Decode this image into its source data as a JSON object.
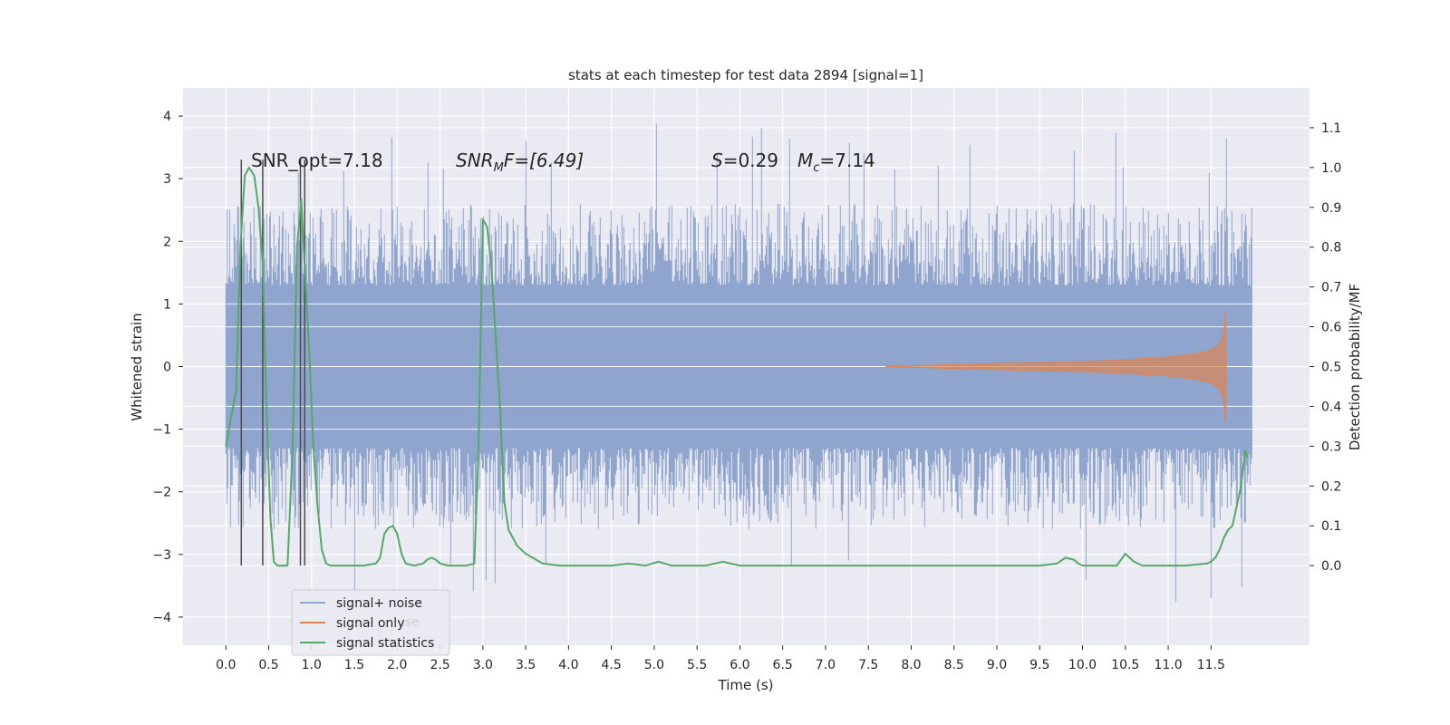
{
  "chart_data": {
    "type": "line",
    "title": "stats at each timestep for test data 2894 [signal=1]",
    "xlabel": "Time (s)",
    "ylabel_left": "Whitened strain",
    "ylabel_right": "Detection probability/MF",
    "xlim": [
      -0.5,
      12.65
    ],
    "ylim_left": [
      -4.45,
      4.45
    ],
    "ylim_right": [
      -0.2,
      1.2
    ],
    "grid": true,
    "xticks": [
      "0.0",
      "0.5",
      "1.0",
      "1.5",
      "2.0",
      "2.5",
      "3.0",
      "3.5",
      "4.0",
      "4.5",
      "5.0",
      "5.5",
      "6.0",
      "6.5",
      "7.0",
      "7.5",
      "8.0",
      "8.5",
      "9.0",
      "9.5",
      "10.0",
      "10.5",
      "11.0",
      "11.5"
    ],
    "xtick_values": [
      0,
      0.5,
      1,
      1.5,
      2,
      2.5,
      3,
      3.5,
      4,
      4.5,
      5,
      5.5,
      6,
      6.5,
      7,
      7.5,
      8,
      8.5,
      9,
      9.5,
      10,
      10.5,
      11,
      11.5
    ],
    "yticks_left": [
      "4",
      "3",
      "2",
      "1",
      "0",
      "−1",
      "−2",
      "−3",
      "−4"
    ],
    "ytick_values_left": [
      4,
      3,
      2,
      1,
      0,
      -1,
      -2,
      -3,
      -4
    ],
    "yticks_right": [
      "1.1",
      "1.0",
      "0.9",
      "0.8",
      "0.7",
      "0.6",
      "0.5",
      "0.4",
      "0.3",
      "0.2",
      "0.1",
      "0.0"
    ],
    "ytick_values_right": [
      1.1,
      1.0,
      0.9,
      0.8,
      0.7,
      0.6,
      0.5,
      0.4,
      0.3,
      0.2,
      0.1,
      0.0
    ],
    "annotations": {
      "snr_opt": "SNR_opt=7.18",
      "snr_mf_base": "SNR",
      "snr_mf_sub": "M",
      "snr_mf_tail": "F=[6.49]",
      "s_label": "S",
      "s_value": "=0.29",
      "mc_label": "M",
      "mc_sub": "c",
      "mc_value": "=7.14"
    },
    "series": [
      {
        "name": "signal+ noise",
        "axis": "left",
        "color": "#8fa5cd",
        "x_range": [
          0,
          11.98
        ],
        "band_lower": -1.25,
        "band_upper": 1.25,
        "spike_min": -4.05,
        "spike_max": 4.08
      },
      {
        "name": "signal only",
        "axis": "left",
        "color": "#dd8452",
        "envelope": [
          [
            7.7,
            0.0
          ],
          [
            8.0,
            0.01
          ],
          [
            9.0,
            0.05
          ],
          [
            10.0,
            0.08
          ],
          [
            10.5,
            0.11
          ],
          [
            11.0,
            0.15
          ],
          [
            11.3,
            0.2
          ],
          [
            11.5,
            0.26
          ],
          [
            11.6,
            0.35
          ],
          [
            11.65,
            0.55
          ],
          [
            11.67,
            0.9
          ],
          [
            11.68,
            0.0
          ]
        ]
      },
      {
        "name": "signal statistics",
        "axis": "right",
        "color": "#55a868",
        "x": [
          0.0,
          0.05,
          0.12,
          0.17,
          0.22,
          0.27,
          0.33,
          0.38,
          0.43,
          0.47,
          0.52,
          0.56,
          0.6,
          0.65,
          0.72,
          0.78,
          0.83,
          0.88,
          0.92,
          0.97,
          1.02,
          1.07,
          1.12,
          1.17,
          1.22,
          1.35,
          1.6,
          1.75,
          1.8,
          1.85,
          1.9,
          1.95,
          2.0,
          2.05,
          2.1,
          2.2,
          2.3,
          2.35,
          2.4,
          2.45,
          2.5,
          2.6,
          2.8,
          2.9,
          2.95,
          3.0,
          3.05,
          3.1,
          3.2,
          3.25,
          3.3,
          3.35,
          3.4,
          3.5,
          3.7,
          3.9,
          4.1,
          4.5,
          4.7,
          4.9,
          5.05,
          5.2,
          5.4,
          5.6,
          5.8,
          6.0,
          6.5,
          7.0,
          7.5,
          8.0,
          8.5,
          9.0,
          9.5,
          9.7,
          9.8,
          9.9,
          9.95,
          10.0,
          10.05,
          10.1,
          10.2,
          10.4,
          10.5,
          10.55,
          10.6,
          10.7,
          10.9,
          11.2,
          11.45,
          11.5,
          11.55,
          11.6,
          11.65,
          11.7,
          11.75,
          11.8,
          11.85,
          11.9,
          11.93
        ],
        "y": [
          0.3,
          0.36,
          0.44,
          0.8,
          0.98,
          1.0,
          0.98,
          0.9,
          0.76,
          0.42,
          0.12,
          0.01,
          0.0,
          0.0,
          0.0,
          0.3,
          0.8,
          0.92,
          0.75,
          0.55,
          0.3,
          0.15,
          0.04,
          0.005,
          0.0,
          0.0,
          0.0,
          0.005,
          0.02,
          0.08,
          0.095,
          0.1,
          0.08,
          0.03,
          0.005,
          0.0,
          0.005,
          0.015,
          0.02,
          0.015,
          0.005,
          0.0,
          0.0,
          0.005,
          0.3,
          0.87,
          0.85,
          0.75,
          0.4,
          0.16,
          0.09,
          0.07,
          0.05,
          0.03,
          0.005,
          0.0,
          0.0,
          0.0,
          0.005,
          0.0,
          0.01,
          0.0,
          0.0,
          0.0,
          0.01,
          0.0,
          0.0,
          0.0,
          0.0,
          0.0,
          0.0,
          0.0,
          0.0,
          0.005,
          0.02,
          0.015,
          0.005,
          0.0,
          0.0,
          0.0,
          0.0,
          0.0,
          0.03,
          0.02,
          0.01,
          0.0,
          0.0,
          0.0,
          0.005,
          0.01,
          0.02,
          0.04,
          0.07,
          0.09,
          0.1,
          0.15,
          0.2,
          0.29,
          0.27
        ]
      }
    ],
    "vertical_markers": {
      "color": "#4c4c4c",
      "x": [
        0.18,
        0.43,
        0.87,
        0.92
      ],
      "y_bottom_right_axis": 0.0,
      "y_top_right_axis": 1.02
    },
    "legend": {
      "placement": "lower-left",
      "ghost_text": "ise"
    }
  }
}
